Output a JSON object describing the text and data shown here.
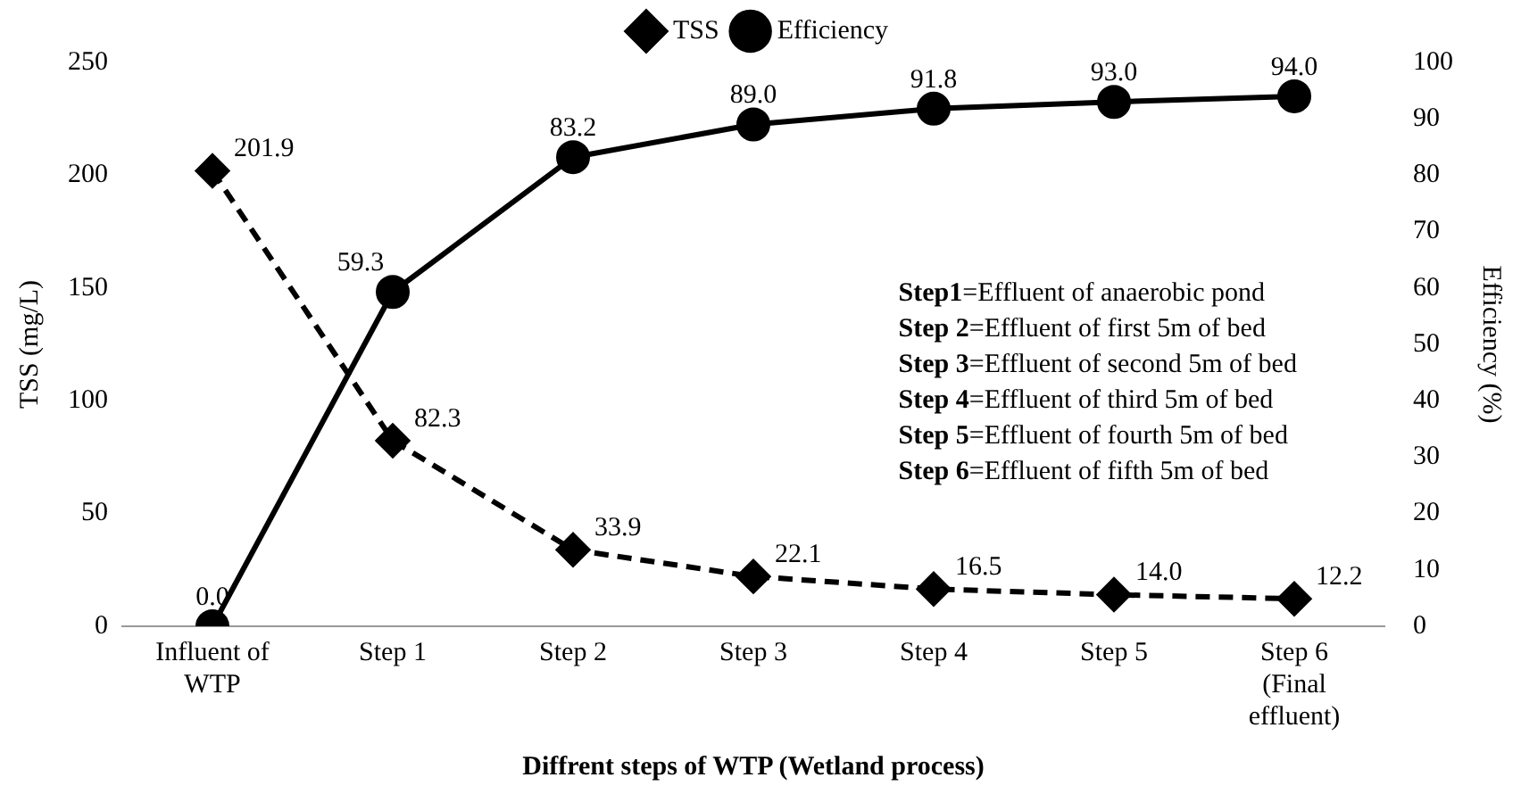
{
  "chart_data": {
    "type": "line",
    "xlabel": "Diffrent steps of WTP (Wetland process)",
    "ylabel": "TSS (mg/L)",
    "y2label": "Efficiency (%)",
    "categories": [
      "Influent of\nWTP",
      "Step 1",
      "Step 2",
      "Step 3",
      "Step 4",
      "Step 5",
      "Step 6\n(Final\neffluent)"
    ],
    "series": [
      {
        "name": "TSS",
        "color": "#000000",
        "marker": "diamond",
        "line_style": "dashed",
        "values": [
          201.9,
          82.3,
          33.9,
          22.1,
          16.5,
          14.0,
          12.2
        ],
        "value_labels": [
          "201.9",
          "82.3",
          "33.9",
          "22.1",
          "16.5",
          "14.0",
          "12.2"
        ]
      },
      {
        "name": "Efficiency",
        "color": "#000000",
        "marker": "circle",
        "line_style": "solid",
        "axis": "y2",
        "values": [
          0.0,
          59.3,
          83.2,
          89.0,
          91.8,
          93.0,
          94.0
        ],
        "value_labels": [
          "0.0",
          "59.3",
          "83.2",
          "89.0",
          "91.8",
          "93.0",
          "94.0"
        ]
      }
    ],
    "ylim": [
      0,
      250
    ],
    "yticks": [
      0,
      50,
      100,
      150,
      200,
      250
    ],
    "y2lim": [
      0,
      100
    ],
    "y2ticks": [
      0,
      10,
      20,
      30,
      40,
      50,
      60,
      70,
      80,
      90,
      100
    ],
    "grid": false,
    "legend": "top",
    "annotations": [
      "Step1=Effluent of anaerobic pond",
      "Step 2=Effluent of first 5m of bed",
      "Step 3=Effluent of second 5m of bed",
      "Step 4=Effluent of third 5m of bed",
      "Step 5=Effluent of fourth 5m of bed",
      "Step 6=Effluent of fifth 5m of bed"
    ]
  }
}
